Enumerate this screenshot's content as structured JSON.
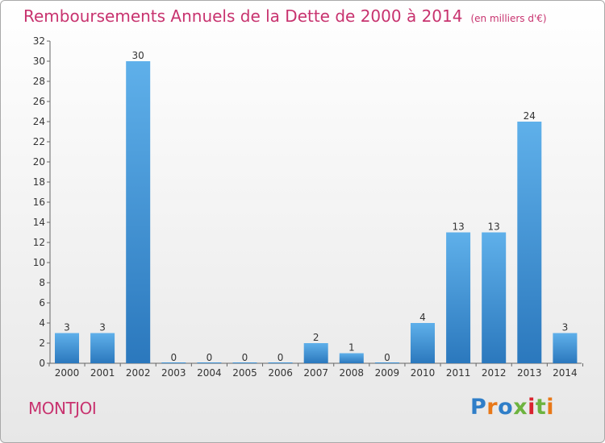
{
  "title": "Remboursements Annuels de la Dette de 2000 à 2014",
  "subtitle": "(en milliers d'€)",
  "town": "MONTJOI",
  "logo": {
    "p": "P",
    "r": "r",
    "o": "o",
    "x": "x",
    "i1": "i",
    "t": "t",
    "i2": "i"
  },
  "chart_data": {
    "type": "bar",
    "title": "Remboursements Annuels de la Dette de 2000 à 2014",
    "subtitle": "(en milliers d'€)",
    "categories": [
      "2000",
      "2001",
      "2002",
      "2003",
      "2004",
      "2005",
      "2006",
      "2007",
      "2008",
      "2009",
      "2010",
      "2011",
      "2012",
      "2013",
      "2014"
    ],
    "values": [
      3,
      3,
      30,
      0,
      0,
      0,
      0,
      2,
      1,
      0,
      4,
      13,
      13,
      24,
      3
    ],
    "ylim": [
      0,
      32
    ],
    "yticks": [
      0,
      2,
      4,
      6,
      8,
      10,
      12,
      14,
      16,
      18,
      20,
      22,
      24,
      26,
      28,
      30,
      32
    ],
    "grid": false,
    "bar_color": "#3a8fd4"
  }
}
